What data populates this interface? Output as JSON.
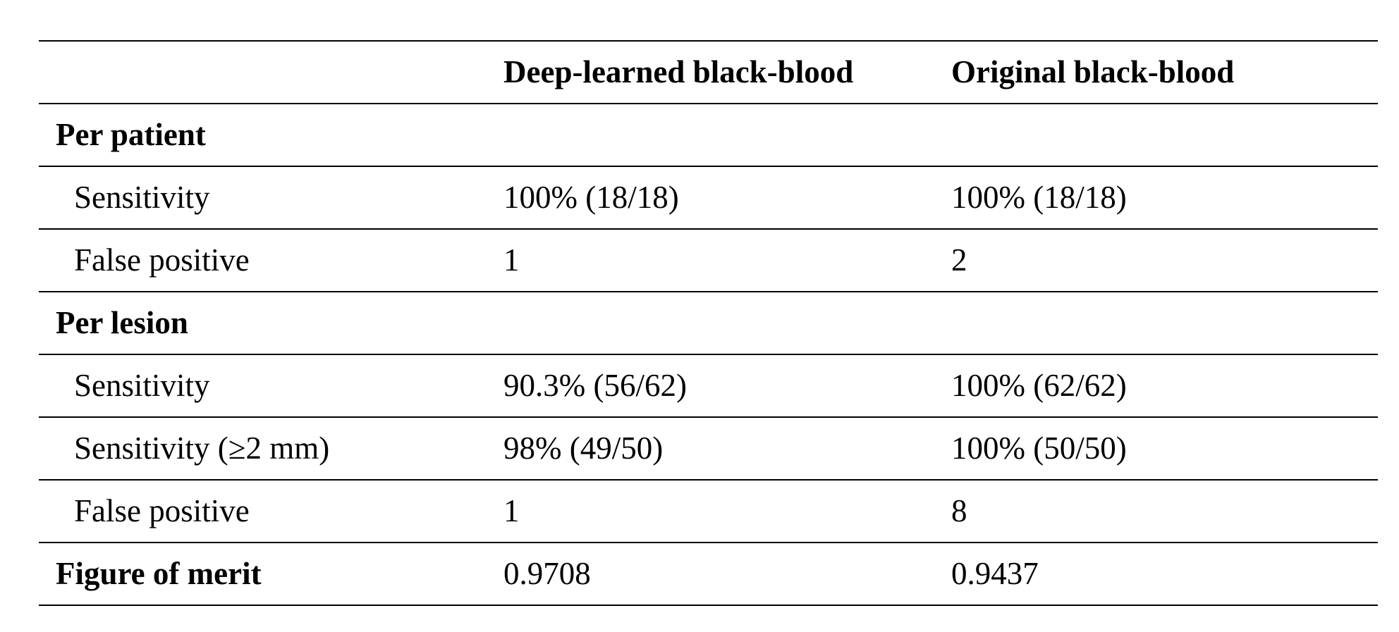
{
  "table": {
    "columns": [
      "Deep-learned black-blood",
      "Original black-blood"
    ],
    "sections": [
      {
        "title": "Per patient",
        "rows": [
          {
            "label": "Sensitivity",
            "values": [
              "100% (18/18)",
              "100% (18/18)"
            ]
          },
          {
            "label": "False positive",
            "values": [
              1,
              2
            ]
          }
        ]
      },
      {
        "title": "Per lesion",
        "rows": [
          {
            "label": "Sensitivity",
            "values": [
              "90.3% (56/62)",
              "100% (62/62)"
            ]
          },
          {
            "label": "Sensitivity (≥2 mm)",
            "values": [
              "98% (49/50)",
              "100% (50/50)"
            ]
          },
          {
            "label": "False positive",
            "values": [
              1,
              8
            ]
          }
        ]
      }
    ],
    "summary": {
      "label": "Figure of merit",
      "values": [
        0.9708,
        0.9437
      ]
    }
  }
}
